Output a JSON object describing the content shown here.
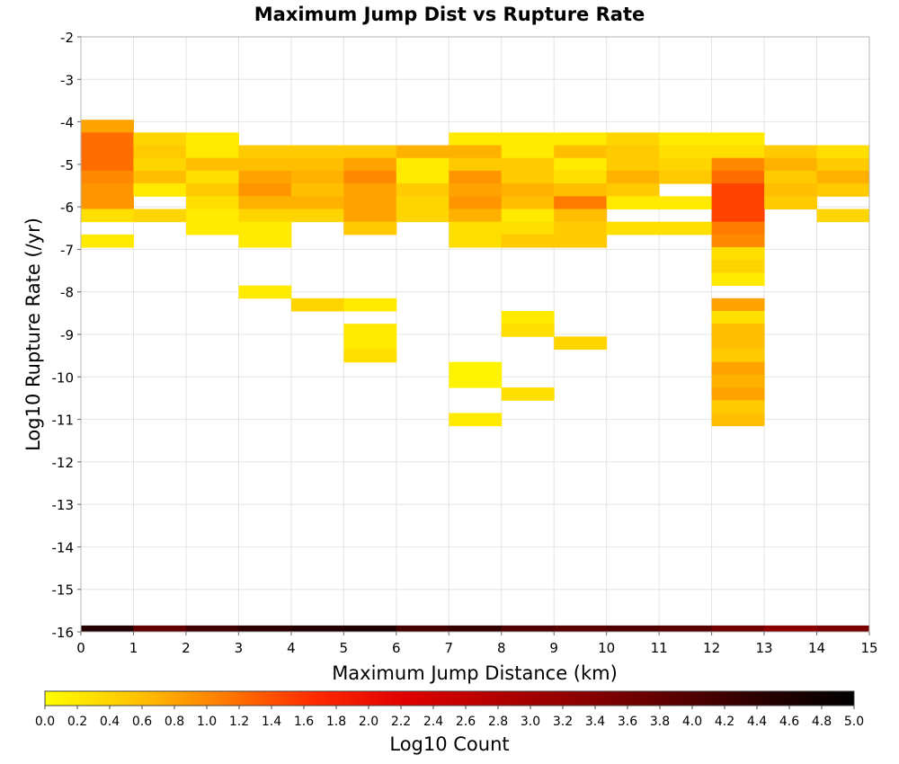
{
  "chart_data": {
    "type": "heatmap",
    "title": "Maximum Jump Dist vs Rupture Rate",
    "xlabel": "Maximum Jump Distance (km)",
    "ylabel": "Log10 Rupture Rate (/yr)",
    "xlim": [
      0,
      15
    ],
    "ylim": [
      -16,
      -2
    ],
    "x_ticks": [
      "0",
      "1",
      "2",
      "3",
      "4",
      "5",
      "6",
      "7",
      "8",
      "9",
      "10",
      "11",
      "12",
      "13",
      "14",
      "15"
    ],
    "y_ticks": [
      "-2",
      "-3",
      "-4",
      "-5",
      "-6",
      "-7",
      "-8",
      "-9",
      "-10",
      "-11",
      "-12",
      "-13",
      "-14",
      "-15",
      "-16"
    ],
    "grid": true,
    "colorbar": {
      "label": "Log10 Count",
      "range": [
        0,
        5
      ],
      "ticks": [
        "0.0",
        "0.2",
        "0.4",
        "0.6",
        "0.8",
        "1.0",
        "1.2",
        "1.4",
        "1.6",
        "1.8",
        "2.0",
        "2.2",
        "2.4",
        "2.6",
        "2.8",
        "3.0",
        "3.2",
        "3.4",
        "3.6",
        "3.8",
        "4.0",
        "4.2",
        "4.4",
        "4.6",
        "4.8",
        "5.0"
      ],
      "colors": [
        "#ffff00",
        "#ffc400",
        "#ff7a00",
        "#ff2a00",
        "#e00000",
        "#b40000",
        "#8a0000",
        "#5a0000",
        "#280000",
        "#000000"
      ]
    },
    "bin_size": {
      "x": 1,
      "y": 0.3
    },
    "cells": [
      {
        "x": 0,
        "y": -4.1,
        "v": 0.8
      },
      {
        "x": 0,
        "y": -4.4,
        "v": 1.2
      },
      {
        "x": 0,
        "y": -4.7,
        "v": 1.2
      },
      {
        "x": 0,
        "y": -5.0,
        "v": 1.2
      },
      {
        "x": 0,
        "y": -5.3,
        "v": 1.0
      },
      {
        "x": 0,
        "y": -5.6,
        "v": 0.9
      },
      {
        "x": 0,
        "y": -5.9,
        "v": 0.9
      },
      {
        "x": 0,
        "y": -6.2,
        "v": 0.3
      },
      {
        "x": 0,
        "y": -6.8,
        "v": 0.2
      },
      {
        "x": 1,
        "y": -4.4,
        "v": 0.4
      },
      {
        "x": 1,
        "y": -4.7,
        "v": 0.5
      },
      {
        "x": 1,
        "y": -5.0,
        "v": 0.4
      },
      {
        "x": 1,
        "y": -5.3,
        "v": 0.6
      },
      {
        "x": 1,
        "y": -5.6,
        "v": 0.2
      },
      {
        "x": 1,
        "y": -6.2,
        "v": 0.4
      },
      {
        "x": 2,
        "y": -4.4,
        "v": 0.2
      },
      {
        "x": 2,
        "y": -4.7,
        "v": 0.2
      },
      {
        "x": 2,
        "y": -5.0,
        "v": 0.6
      },
      {
        "x": 2,
        "y": -5.3,
        "v": 0.3
      },
      {
        "x": 2,
        "y": -5.6,
        "v": 0.5
      },
      {
        "x": 2,
        "y": -5.9,
        "v": 0.3
      },
      {
        "x": 2,
        "y": -6.2,
        "v": 0.2
      },
      {
        "x": 2,
        "y": -6.5,
        "v": 0.2
      },
      {
        "x": 3,
        "y": -4.7,
        "v": 0.5
      },
      {
        "x": 3,
        "y": -5.0,
        "v": 0.6
      },
      {
        "x": 3,
        "y": -5.3,
        "v": 0.8
      },
      {
        "x": 3,
        "y": -5.6,
        "v": 0.9
      },
      {
        "x": 3,
        "y": -5.9,
        "v": 0.7
      },
      {
        "x": 3,
        "y": -6.2,
        "v": 0.4
      },
      {
        "x": 3,
        "y": -6.5,
        "v": 0.2
      },
      {
        "x": 3,
        "y": -6.8,
        "v": 0.2
      },
      {
        "x": 3,
        "y": -8.0,
        "v": 0.2
      },
      {
        "x": 4,
        "y": -4.7,
        "v": 0.5
      },
      {
        "x": 4,
        "y": -5.0,
        "v": 0.6
      },
      {
        "x": 4,
        "y": -5.3,
        "v": 0.7
      },
      {
        "x": 4,
        "y": -5.6,
        "v": 0.6
      },
      {
        "x": 4,
        "y": -5.9,
        "v": 0.7
      },
      {
        "x": 4,
        "y": -6.2,
        "v": 0.4
      },
      {
        "x": 4,
        "y": -8.3,
        "v": 0.4
      },
      {
        "x": 5,
        "y": -4.7,
        "v": 0.5
      },
      {
        "x": 5,
        "y": -5.0,
        "v": 0.8
      },
      {
        "x": 5,
        "y": -5.3,
        "v": 1.0
      },
      {
        "x": 5,
        "y": -5.6,
        "v": 0.8
      },
      {
        "x": 5,
        "y": -5.9,
        "v": 0.8
      },
      {
        "x": 5,
        "y": -6.2,
        "v": 0.8
      },
      {
        "x": 5,
        "y": -6.5,
        "v": 0.5
      },
      {
        "x": 5,
        "y": -8.3,
        "v": 0.2
      },
      {
        "x": 5,
        "y": -8.9,
        "v": 0.2
      },
      {
        "x": 5,
        "y": -9.2,
        "v": 0.2
      },
      {
        "x": 5,
        "y": -9.5,
        "v": 0.3
      },
      {
        "x": 6,
        "y": -4.7,
        "v": 0.7
      },
      {
        "x": 6,
        "y": -5.0,
        "v": 0.2
      },
      {
        "x": 6,
        "y": -5.3,
        "v": 0.2
      },
      {
        "x": 6,
        "y": -5.6,
        "v": 0.5
      },
      {
        "x": 6,
        "y": -5.9,
        "v": 0.4
      },
      {
        "x": 6,
        "y": -6.2,
        "v": 0.4
      },
      {
        "x": 7,
        "y": -4.4,
        "v": 0.2
      },
      {
        "x": 7,
        "y": -4.7,
        "v": 0.7
      },
      {
        "x": 7,
        "y": -5.0,
        "v": 0.5
      },
      {
        "x": 7,
        "y": -5.3,
        "v": 0.9
      },
      {
        "x": 7,
        "y": -5.6,
        "v": 0.8
      },
      {
        "x": 7,
        "y": -5.9,
        "v": 0.9
      },
      {
        "x": 7,
        "y": -6.2,
        "v": 0.7
      },
      {
        "x": 7,
        "y": -6.5,
        "v": 0.3
      },
      {
        "x": 7,
        "y": -6.8,
        "v": 0.3
      },
      {
        "x": 7,
        "y": -9.8,
        "v": 0.1
      },
      {
        "x": 7,
        "y": -10.1,
        "v": 0.1
      },
      {
        "x": 7,
        "y": -11.0,
        "v": 0.2
      },
      {
        "x": 8,
        "y": -4.4,
        "v": 0.2
      },
      {
        "x": 8,
        "y": -4.7,
        "v": 0.2
      },
      {
        "x": 8,
        "y": -5.0,
        "v": 0.5
      },
      {
        "x": 8,
        "y": -5.3,
        "v": 0.5
      },
      {
        "x": 8,
        "y": -5.6,
        "v": 0.7
      },
      {
        "x": 8,
        "y": -5.9,
        "v": 0.6
      },
      {
        "x": 8,
        "y": -6.2,
        "v": 0.2
      },
      {
        "x": 8,
        "y": -6.5,
        "v": 0.3
      },
      {
        "x": 8,
        "y": -6.8,
        "v": 0.5
      },
      {
        "x": 8,
        "y": -8.6,
        "v": 0.2
      },
      {
        "x": 8,
        "y": -8.9,
        "v": 0.3
      },
      {
        "x": 8,
        "y": -10.4,
        "v": 0.3
      },
      {
        "x": 9,
        "y": -4.4,
        "v": 0.2
      },
      {
        "x": 9,
        "y": -4.7,
        "v": 0.6
      },
      {
        "x": 9,
        "y": -5.0,
        "v": 0.2
      },
      {
        "x": 9,
        "y": -5.3,
        "v": 0.3
      },
      {
        "x": 9,
        "y": -5.6,
        "v": 0.6
      },
      {
        "x": 9,
        "y": -5.9,
        "v": 1.1
      },
      {
        "x": 9,
        "y": -6.2,
        "v": 0.6
      },
      {
        "x": 9,
        "y": -6.5,
        "v": 0.5
      },
      {
        "x": 9,
        "y": -6.8,
        "v": 0.5
      },
      {
        "x": 9,
        "y": -9.2,
        "v": 0.4
      },
      {
        "x": 10,
        "y": -4.4,
        "v": 0.4
      },
      {
        "x": 10,
        "y": -4.7,
        "v": 0.5
      },
      {
        "x": 10,
        "y": -5.0,
        "v": 0.5
      },
      {
        "x": 10,
        "y": -5.3,
        "v": 0.7
      },
      {
        "x": 10,
        "y": -5.6,
        "v": 0.5
      },
      {
        "x": 10,
        "y": -5.9,
        "v": 0.2
      },
      {
        "x": 10,
        "y": -6.5,
        "v": 0.3
      },
      {
        "x": 11,
        "y": -4.4,
        "v": 0.2
      },
      {
        "x": 11,
        "y": -4.7,
        "v": 0.3
      },
      {
        "x": 11,
        "y": -5.0,
        "v": 0.4
      },
      {
        "x": 11,
        "y": -5.3,
        "v": 0.5
      },
      {
        "x": 11,
        "y": -5.9,
        "v": 0.2
      },
      {
        "x": 11,
        "y": -6.5,
        "v": 0.3
      },
      {
        "x": 12,
        "y": -4.4,
        "v": 0.2
      },
      {
        "x": 12,
        "y": -4.7,
        "v": 0.3
      },
      {
        "x": 12,
        "y": -5.0,
        "v": 1.0
      },
      {
        "x": 12,
        "y": -5.3,
        "v": 1.2
      },
      {
        "x": 12,
        "y": -5.6,
        "v": 1.5
      },
      {
        "x": 12,
        "y": -5.9,
        "v": 1.5
      },
      {
        "x": 12,
        "y": -6.2,
        "v": 1.5
      },
      {
        "x": 12,
        "y": -6.5,
        "v": 1.1
      },
      {
        "x": 12,
        "y": -6.8,
        "v": 1.0
      },
      {
        "x": 12,
        "y": -7.1,
        "v": 0.3
      },
      {
        "x": 12,
        "y": -7.4,
        "v": 0.4
      },
      {
        "x": 12,
        "y": -7.7,
        "v": 0.2
      },
      {
        "x": 12,
        "y": -8.3,
        "v": 0.8
      },
      {
        "x": 12,
        "y": -8.6,
        "v": 0.3
      },
      {
        "x": 12,
        "y": -8.9,
        "v": 0.6
      },
      {
        "x": 12,
        "y": -9.2,
        "v": 0.6
      },
      {
        "x": 12,
        "y": -9.5,
        "v": 0.5
      },
      {
        "x": 12,
        "y": -9.8,
        "v": 0.8
      },
      {
        "x": 12,
        "y": -10.1,
        "v": 0.7
      },
      {
        "x": 12,
        "y": -10.4,
        "v": 0.8
      },
      {
        "x": 12,
        "y": -10.7,
        "v": 0.5
      },
      {
        "x": 12,
        "y": -11.0,
        "v": 0.6
      },
      {
        "x": 13,
        "y": -4.7,
        "v": 0.5
      },
      {
        "x": 13,
        "y": -5.0,
        "v": 0.7
      },
      {
        "x": 13,
        "y": -5.3,
        "v": 0.5
      },
      {
        "x": 13,
        "y": -5.6,
        "v": 0.6
      },
      {
        "x": 13,
        "y": -5.9,
        "v": 0.5
      },
      {
        "x": 14,
        "y": -4.7,
        "v": 0.3
      },
      {
        "x": 14,
        "y": -5.0,
        "v": 0.5
      },
      {
        "x": 14,
        "y": -5.3,
        "v": 0.7
      },
      {
        "x": 14,
        "y": -5.6,
        "v": 0.5
      },
      {
        "x": 14,
        "y": -6.2,
        "v": 0.4
      },
      {
        "x": 0,
        "y": -16.0,
        "v": 4.5
      },
      {
        "x": 1,
        "y": -16.0,
        "v": 3.8
      },
      {
        "x": 2,
        "y": -16.0,
        "v": 4.2
      },
      {
        "x": 3,
        "y": -16.0,
        "v": 4.4
      },
      {
        "x": 4,
        "y": -16.0,
        "v": 4.5
      },
      {
        "x": 5,
        "y": -16.0,
        "v": 4.6
      },
      {
        "x": 6,
        "y": -16.0,
        "v": 4.1
      },
      {
        "x": 7,
        "y": -16.0,
        "v": 4.3
      },
      {
        "x": 8,
        "y": -16.0,
        "v": 4.0
      },
      {
        "x": 9,
        "y": -16.0,
        "v": 3.9
      },
      {
        "x": 10,
        "y": -16.0,
        "v": 4.0
      },
      {
        "x": 11,
        "y": -16.0,
        "v": 3.9
      },
      {
        "x": 12,
        "y": -16.0,
        "v": 3.6
      },
      {
        "x": 13,
        "y": -16.0,
        "v": 3.3
      },
      {
        "x": 14,
        "y": -16.0,
        "v": 3.5
      }
    ]
  }
}
